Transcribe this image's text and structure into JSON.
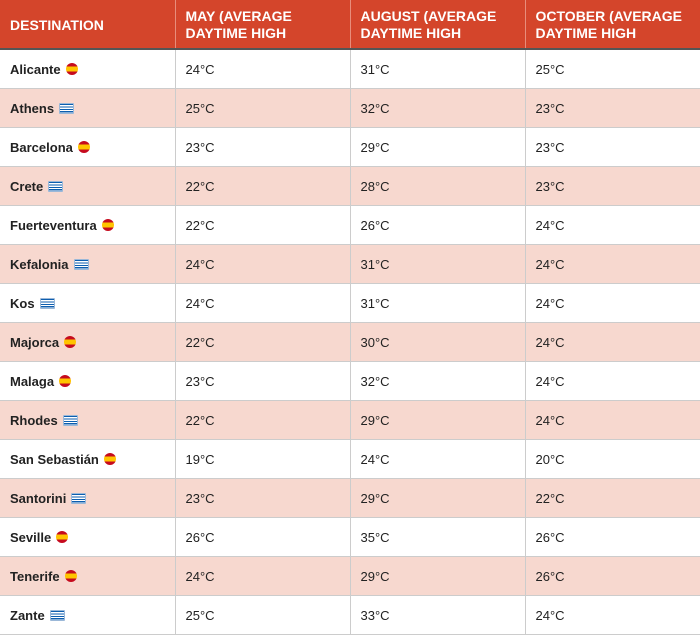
{
  "table": {
    "headers": [
      "DESTINATION",
      "MAY (AVERAGE DAYTIME HIGH",
      "AUGUST (AVERAGE DAYTIME HIGH",
      "OCTOBER (AVERAGE DAYTIME HIGH"
    ],
    "rows": [
      [
        "Alicante",
        "24°C",
        "31°C",
        "25°C"
      ],
      [
        "Athens",
        "25°C",
        "32°C",
        "23°C"
      ],
      [
        "Barcelona",
        "23°C",
        "29°C",
        "23°C"
      ],
      [
        "Crete",
        "22°C",
        "28°C",
        "23°C"
      ],
      [
        "Fuerteventura",
        "22°C",
        "26°C",
        "24°C"
      ],
      [
        "Kefalonia",
        "24°C",
        "31°C",
        "24°C"
      ],
      [
        "Kos",
        "24°C",
        "31°C",
        "24°C"
      ],
      [
        "Majorca",
        "22°C",
        "30°C",
        "24°C"
      ],
      [
        "Malaga",
        "23°C",
        "32°C",
        "24°C"
      ],
      [
        "Rhodes",
        "22°C",
        "29°C",
        "24°C"
      ],
      [
        "San Sebastián",
        "19°C",
        "24°C",
        "20°C"
      ],
      [
        "Santorini",
        "23°C",
        "29°C",
        "22°C"
      ],
      [
        "Seville",
        "26°C",
        "35°C",
        "26°C"
      ],
      [
        "Tenerife",
        "24°C",
        "29°C",
        "26°C"
      ],
      [
        "Zante",
        "25°C",
        "33°C",
        "24°C"
      ]
    ]
  }
}
